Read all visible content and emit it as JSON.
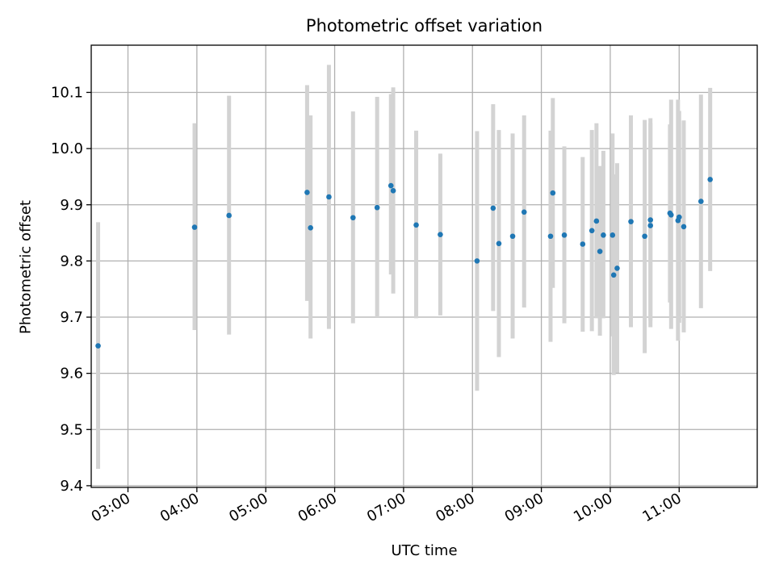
{
  "chart_data": {
    "type": "scatter",
    "title": "Photometric offset variation",
    "xlabel": "UTC time",
    "ylabel": "Photometric offset",
    "ylim": [
      9.397,
      10.184
    ],
    "xlim": [
      "02:28",
      "12:08"
    ],
    "grid": true,
    "x_ticks": [
      "03:00",
      "04:00",
      "05:00",
      "06:00",
      "07:00",
      "08:00",
      "09:00",
      "10:00",
      "11:00"
    ],
    "y_ticks": [
      "9.4",
      "9.5",
      "9.6",
      "9.7",
      "9.8",
      "9.9",
      "10.0",
      "10.1"
    ],
    "colors": {
      "marker": "#1f77b4",
      "errorbar": "#d3d3d3",
      "grid": "#b0b0b0"
    },
    "points": [
      {
        "x": "02:34",
        "y": 9.649,
        "ylow": 9.43,
        "yhigh": 9.869
      },
      {
        "x": "03:58",
        "y": 9.86,
        "ylow": 9.677,
        "yhigh": 10.045
      },
      {
        "x": "04:28",
        "y": 9.881,
        "ylow": 9.669,
        "yhigh": 10.094
      },
      {
        "x": "05:36",
        "y": 9.922,
        "ylow": 9.729,
        "yhigh": 10.113
      },
      {
        "x": "05:39",
        "y": 9.859,
        "ylow": 9.662,
        "yhigh": 10.059
      },
      {
        "x": "05:55",
        "y": 9.914,
        "ylow": 9.679,
        "yhigh": 10.149
      },
      {
        "x": "06:16",
        "y": 9.877,
        "ylow": 9.689,
        "yhigh": 10.066
      },
      {
        "x": "06:37",
        "y": 9.895,
        "ylow": 9.7,
        "yhigh": 10.092
      },
      {
        "x": "06:49",
        "y": 9.934,
        "ylow": 9.776,
        "yhigh": 10.097
      },
      {
        "x": "06:51",
        "y": 9.925,
        "ylow": 9.742,
        "yhigh": 10.109
      },
      {
        "x": "07:11",
        "y": 9.864,
        "ylow": 9.698,
        "yhigh": 10.032
      },
      {
        "x": "07:32",
        "y": 9.847,
        "ylow": 9.703,
        "yhigh": 9.991
      },
      {
        "x": "08:04",
        "y": 9.8,
        "ylow": 9.569,
        "yhigh": 10.031
      },
      {
        "x": "08:18",
        "y": 9.894,
        "ylow": 9.711,
        "yhigh": 10.079
      },
      {
        "x": "08:23",
        "y": 9.831,
        "ylow": 9.629,
        "yhigh": 10.033
      },
      {
        "x": "08:35",
        "y": 9.844,
        "ylow": 9.662,
        "yhigh": 10.027
      },
      {
        "x": "08:45",
        "y": 9.887,
        "ylow": 9.717,
        "yhigh": 10.059
      },
      {
        "x": "09:08",
        "y": 9.844,
        "ylow": 9.656,
        "yhigh": 10.032
      },
      {
        "x": "09:10",
        "y": 9.921,
        "ylow": 9.752,
        "yhigh": 10.09
      },
      {
        "x": "09:20",
        "y": 9.846,
        "ylow": 9.689,
        "yhigh": 10.004
      },
      {
        "x": "09:36",
        "y": 9.83,
        "ylow": 9.674,
        "yhigh": 9.985
      },
      {
        "x": "09:44",
        "y": 9.854,
        "ylow": 9.675,
        "yhigh": 10.033
      },
      {
        "x": "09:48",
        "y": 9.871,
        "ylow": 9.698,
        "yhigh": 10.045
      },
      {
        "x": "09:51",
        "y": 9.817,
        "ylow": 9.667,
        "yhigh": 9.969
      },
      {
        "x": "09:54",
        "y": 9.846,
        "ylow": 9.698,
        "yhigh": 9.996
      },
      {
        "x": "10:02",
        "y": 9.846,
        "ylow": 9.666,
        "yhigh": 10.027
      },
      {
        "x": "10:03",
        "y": 9.775,
        "ylow": 9.597,
        "yhigh": 9.954
      },
      {
        "x": "10:06",
        "y": 9.787,
        "ylow": 9.601,
        "yhigh": 9.974
      },
      {
        "x": "10:18",
        "y": 9.87,
        "ylow": 9.682,
        "yhigh": 10.059
      },
      {
        "x": "10:30",
        "y": 9.844,
        "ylow": 9.636,
        "yhigh": 10.051
      },
      {
        "x": "10:35",
        "y": 9.873,
        "ylow": 9.694,
        "yhigh": 10.054
      },
      {
        "x": "10:35",
        "y": 9.863,
        "ylow": 9.682,
        "yhigh": 10.045
      },
      {
        "x": "10:52",
        "y": 9.885,
        "ylow": 9.726,
        "yhigh": 10.043
      },
      {
        "x": "10:53",
        "y": 9.882,
        "ylow": 9.679,
        "yhigh": 10.087
      },
      {
        "x": "10:59",
        "y": 9.872,
        "ylow": 9.658,
        "yhigh": 10.087
      },
      {
        "x": "11:00",
        "y": 9.878,
        "ylow": 9.69,
        "yhigh": 10.067
      },
      {
        "x": "11:04",
        "y": 9.861,
        "ylow": 9.673,
        "yhigh": 10.05
      },
      {
        "x": "11:19",
        "y": 9.906,
        "ylow": 9.716,
        "yhigh": 10.096
      },
      {
        "x": "11:27",
        "y": 9.945,
        "ylow": 9.782,
        "yhigh": 10.108
      }
    ]
  }
}
